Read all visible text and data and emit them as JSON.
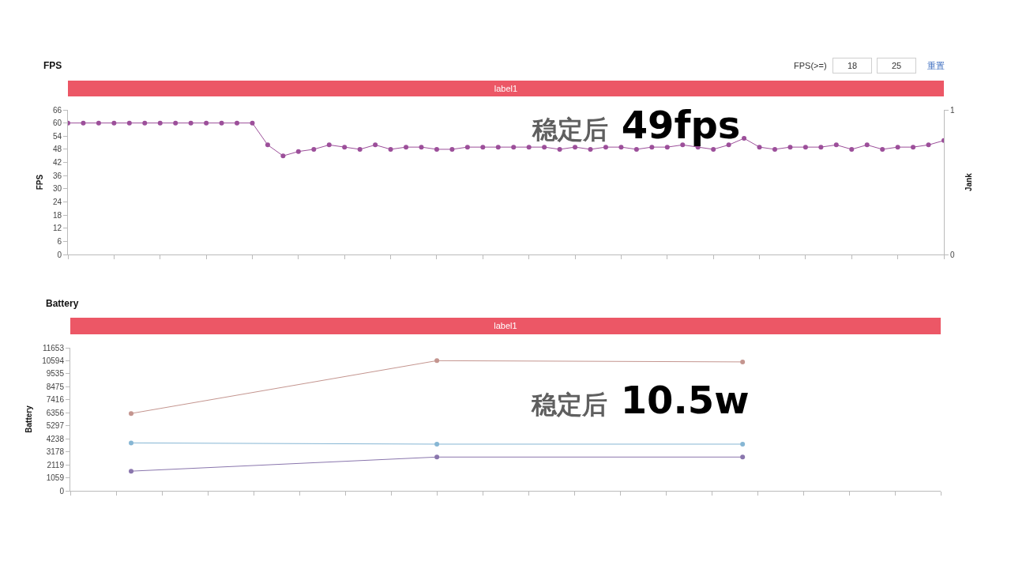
{
  "chart_data": [
    {
      "type": "line",
      "title": "FPS",
      "ylabel": "FPS",
      "y2label": "Jank",
      "categories": [
        null,
        null,
        null,
        null,
        null,
        null,
        null,
        null,
        null,
        null,
        null,
        null,
        null,
        null,
        null,
        null,
        null,
        null,
        null,
        null,
        null,
        null,
        null,
        null,
        null,
        null,
        null,
        null,
        null,
        null,
        null,
        null,
        null,
        null,
        null,
        null,
        null,
        null,
        null,
        null,
        null,
        null,
        null,
        null,
        null,
        null,
        null,
        null,
        null,
        null,
        null,
        null,
        null,
        null,
        null,
        null,
        null,
        null
      ],
      "series": [
        {
          "color": "#9c4f9a",
          "values": [
            60,
            60,
            60,
            60,
            60,
            60,
            60,
            60,
            60,
            60,
            60,
            60,
            60,
            50,
            45,
            47,
            48,
            50,
            49,
            48,
            50,
            48,
            49,
            49,
            48,
            48,
            49,
            49,
            49,
            49,
            49,
            49,
            48,
            49,
            48,
            49,
            49,
            48,
            49,
            49,
            50,
            49,
            48,
            50,
            53,
            49,
            48,
            49,
            49,
            49,
            50,
            48,
            50,
            48,
            49,
            49,
            50,
            52
          ]
        }
      ],
      "ylim": [
        0,
        66
      ],
      "yticks": [
        0,
        6,
        12,
        18,
        24,
        30,
        36,
        42,
        48,
        54,
        60,
        66
      ],
      "y2lim": [
        0,
        1
      ],
      "y2ticks": [
        0,
        1
      ],
      "tick_labels": "y",
      "marker": "circle",
      "line_style": "solid",
      "annotations": [
        "FPS(>=)",
        "18",
        "25",
        "重置",
        "label1",
        "稳定后 49fps"
      ]
    },
    {
      "type": "line",
      "title": "Battery",
      "ylabel": "Battery",
      "categories": [
        null,
        null,
        null
      ],
      "series": [
        {
          "color": "#c4958f",
          "values": [
            6300,
            10600,
            10500
          ]
        },
        {
          "color": "#86b6d4",
          "values": [
            3900,
            3800,
            3800
          ]
        },
        {
          "color": "#8a76ad",
          "values": [
            1600,
            2750,
            2750
          ]
        }
      ],
      "ylim": [
        0,
        11653
      ],
      "yticks": [
        0,
        1059,
        2119,
        3178,
        4238,
        5297,
        6356,
        7416,
        8475,
        9535,
        10594,
        11653
      ],
      "tick_labels": "y",
      "marker": "circle",
      "line_style": "solid",
      "annotations": [
        "label1",
        "稳定后 10.5w"
      ]
    }
  ]
}
